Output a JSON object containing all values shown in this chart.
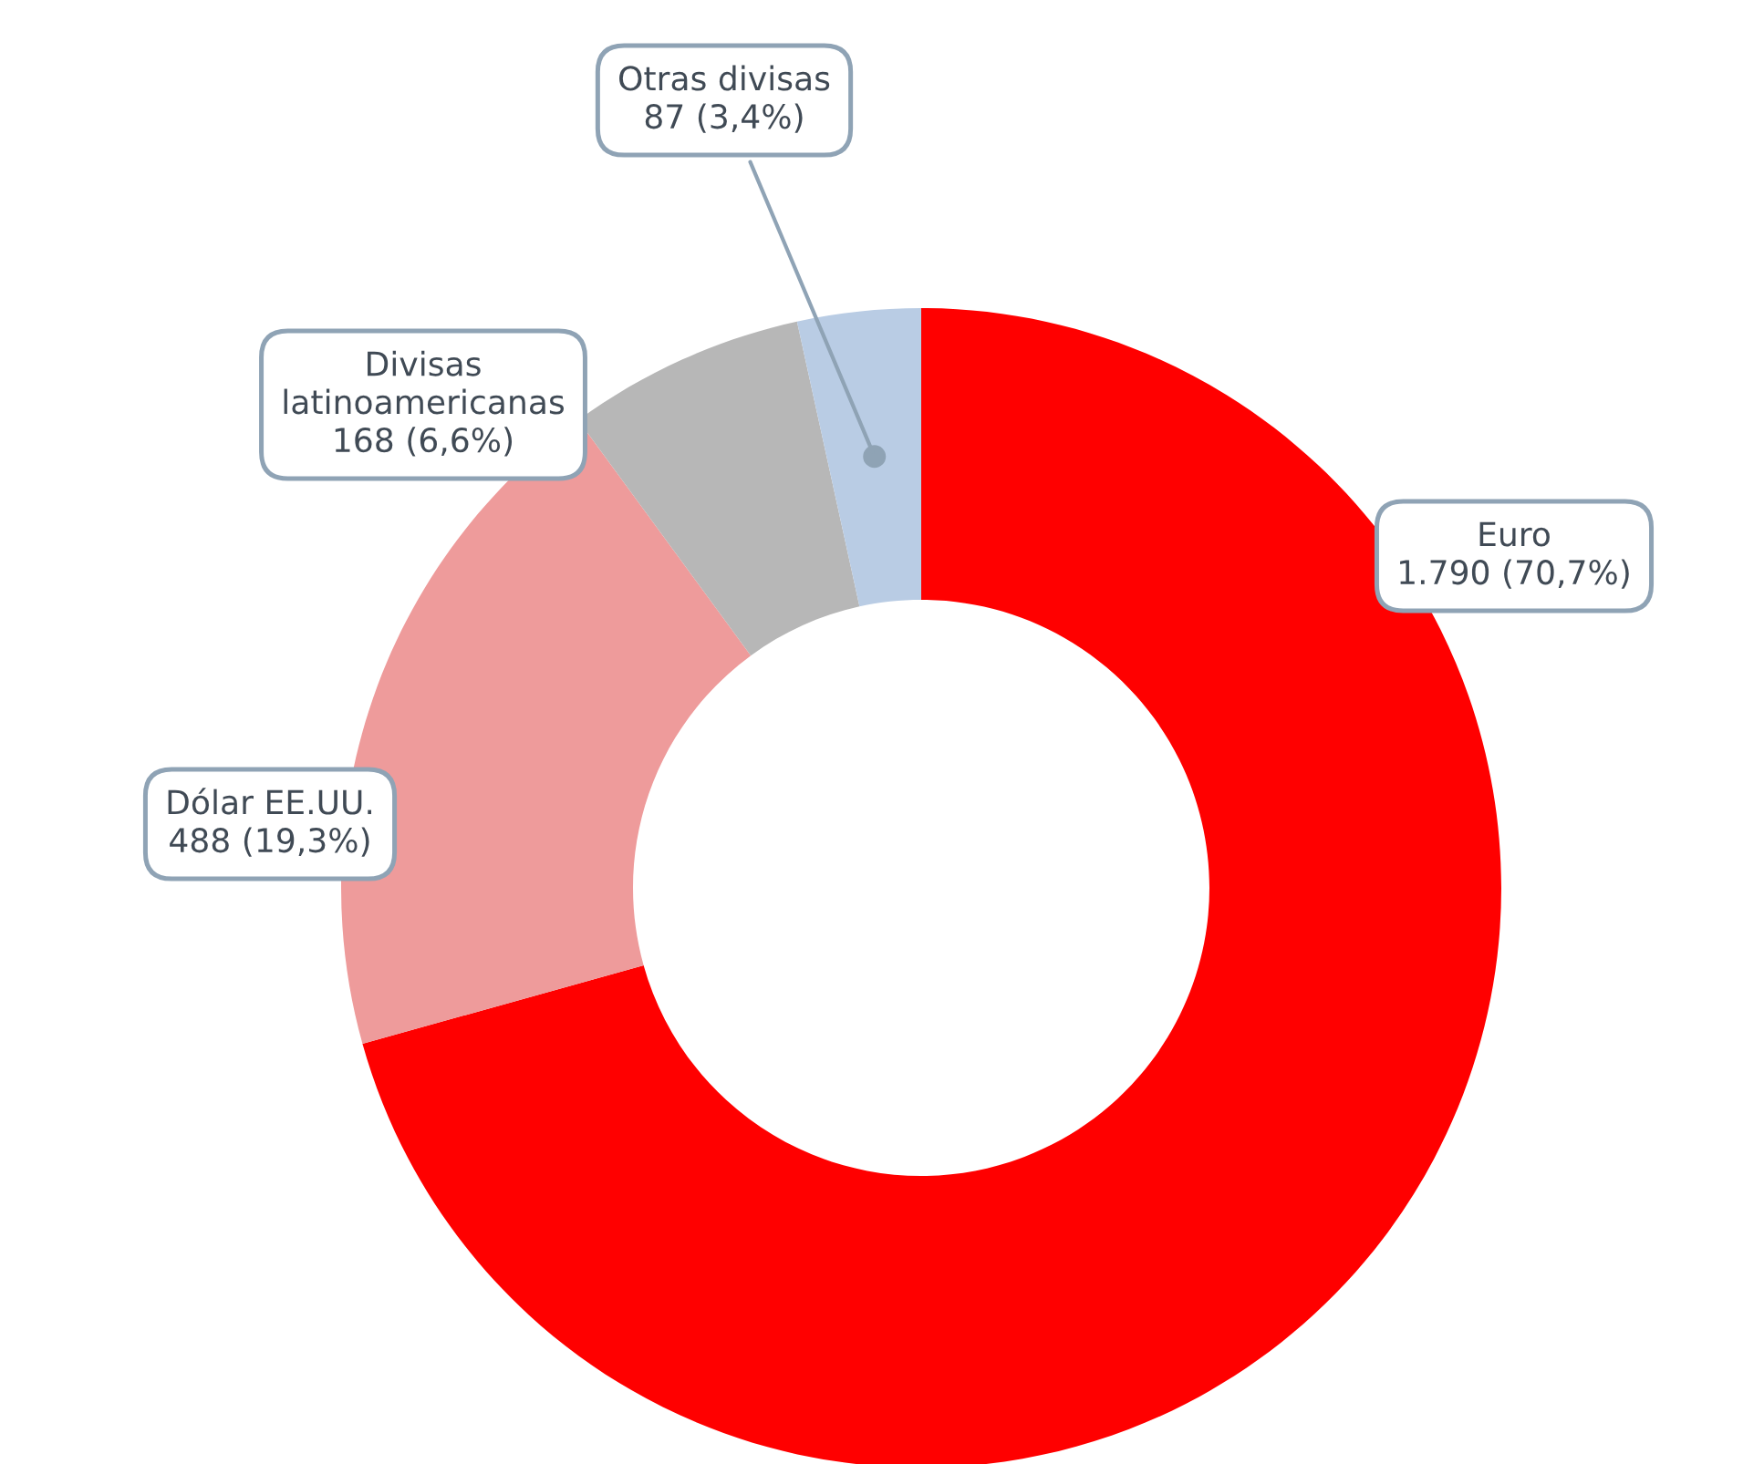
{
  "chart_data": {
    "type": "donut",
    "categories": [
      "Euro",
      "Dólar EE.UU.",
      "Divisas latinoamericanas",
      "Otras divisas"
    ],
    "values": [
      1790,
      488,
      168,
      87
    ],
    "colors": [
      "#ff0000",
      "#ee9b9b",
      "#b7b7b7",
      "#b9cce4"
    ],
    "value_labels": [
      "1.790 (70,7%)",
      "488 (19,3%)",
      "168 (6,6%)",
      "87 (3,4%)"
    ],
    "legend": false
  }
}
